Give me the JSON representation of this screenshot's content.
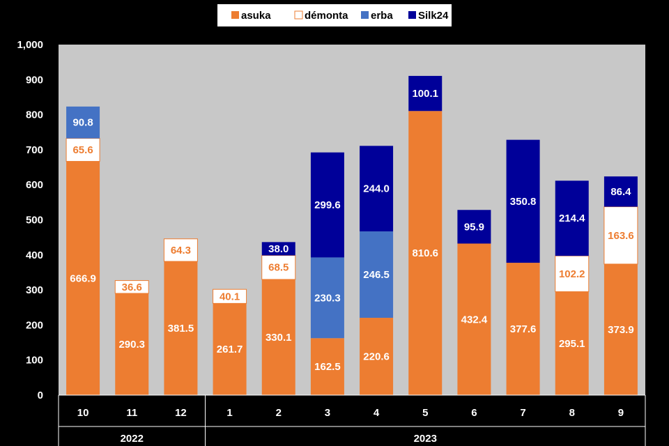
{
  "chart_data": {
    "type": "bar",
    "stacked": true,
    "years": [
      {
        "label": "2022",
        "months": [
          "10",
          "11",
          "12"
        ]
      },
      {
        "label": "2023",
        "months": [
          "1",
          "2",
          "3",
          "4",
          "5",
          "6",
          "7",
          "8",
          "9"
        ]
      }
    ],
    "categories": [
      "10",
      "11",
      "12",
      "1",
      "2",
      "3",
      "4",
      "5",
      "6",
      "7",
      "8",
      "9"
    ],
    "series": [
      {
        "name": "asuka",
        "color": "#ED7D31",
        "values": [
          666.9,
          290.3,
          381.5,
          261.7,
          330.1,
          162.5,
          220.6,
          810.6,
          432.4,
          377.6,
          295.1,
          373.9
        ],
        "labels": [
          "666.9",
          "290.3",
          "381.5",
          "261.7",
          "330.1",
          "162.5",
          "220.6",
          "810.6",
          "432.4",
          "377.6",
          "295.1",
          "373.9"
        ]
      },
      {
        "name": "démonta",
        "color": "#FFFFFF",
        "values": [
          65.6,
          36.6,
          64.3,
          40.1,
          68.5,
          null,
          null,
          null,
          null,
          null,
          102.2,
          163.6
        ],
        "labels": [
          "65.6",
          "36.6",
          "64.3",
          "40.1",
          "68.5",
          null,
          null,
          null,
          null,
          null,
          "102.2",
          "163.6"
        ]
      },
      {
        "name": "erba",
        "color": "#4472C4",
        "values": [
          90.8,
          null,
          null,
          null,
          null,
          230.3,
          246.5,
          null,
          null,
          null,
          null,
          null
        ],
        "labels": [
          "90.8",
          null,
          null,
          null,
          null,
          "230.3",
          "246.5",
          null,
          null,
          null,
          null,
          null
        ]
      },
      {
        "name": "Silk24",
        "color": "#000099",
        "values": [
          null,
          null,
          null,
          null,
          38.0,
          299.6,
          244.0,
          100.1,
          95.9,
          350.8,
          214.4,
          86.4
        ],
        "labels": [
          null,
          null,
          null,
          null,
          "38.0",
          "299.6",
          "244.0",
          "100.1",
          "95.9",
          "350.8",
          "214.4",
          "86.4"
        ]
      }
    ],
    "ylim": [
      0,
      1000
    ],
    "yticks": [
      "0",
      "100",
      "200",
      "300",
      "400",
      "500",
      "600",
      "700",
      "800",
      "900",
      "1,000"
    ],
    "legend_position": "top",
    "grid": false,
    "colors": {
      "background": "#000000",
      "plot_area": "#C8C8C8",
      "text": "#FFFFFF",
      "demonta_label": "#ED7D31",
      "legend_box": "#FFFFFF"
    }
  }
}
